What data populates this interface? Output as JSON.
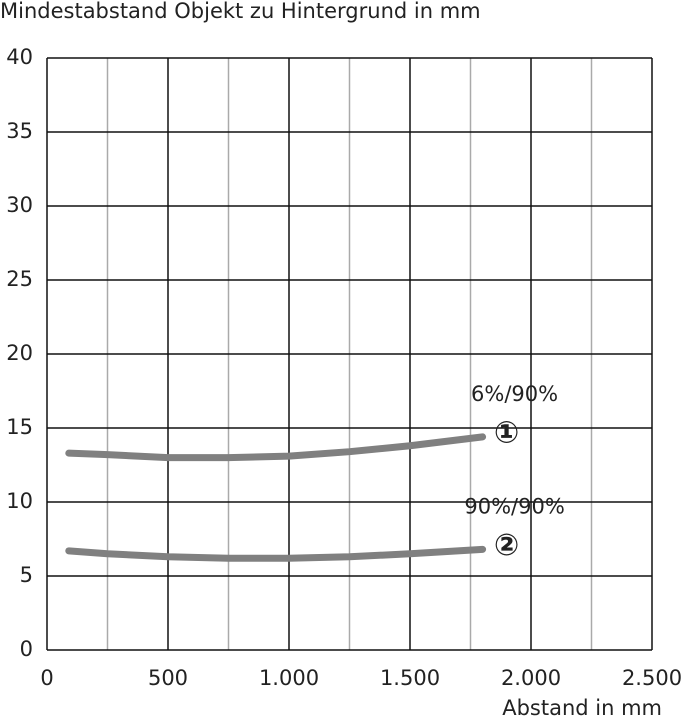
{
  "chart_data": {
    "type": "line",
    "title": "Mindestabstand Objekt zu Hintergrund in mm",
    "xlabel": "Abstand in mm",
    "x": [
      90,
      250,
      500,
      750,
      1000,
      1250,
      1500,
      1800
    ],
    "series": [
      {
        "name": "6%/90%",
        "color": "#808080",
        "values": [
          13.3,
          13.2,
          13.0,
          13.0,
          13.1,
          13.4,
          13.8,
          14.4
        ]
      },
      {
        "name": "90%/90%",
        "color": "#808080",
        "values": [
          6.7,
          6.5,
          6.3,
          6.2,
          6.2,
          6.3,
          6.5,
          6.8
        ]
      }
    ],
    "annotations": [
      "①",
      "②"
    ],
    "xlim": [
      0,
      2500
    ],
    "xticks": [
      0,
      500,
      {
        "value": 1000,
        "label": "1.000"
      },
      {
        "value": 1500,
        "label": "1.500"
      },
      {
        "value": 2000,
        "label": "2.000"
      },
      {
        "value": 2500,
        "label": "2.500"
      }
    ],
    "xgrid_minor": [
      250,
      750,
      1250,
      1750,
      2250
    ],
    "ylim": [
      0,
      40
    ],
    "yticks": [
      0,
      5,
      10,
      15,
      20,
      25,
      30,
      35,
      40
    ],
    "grid": true
  }
}
